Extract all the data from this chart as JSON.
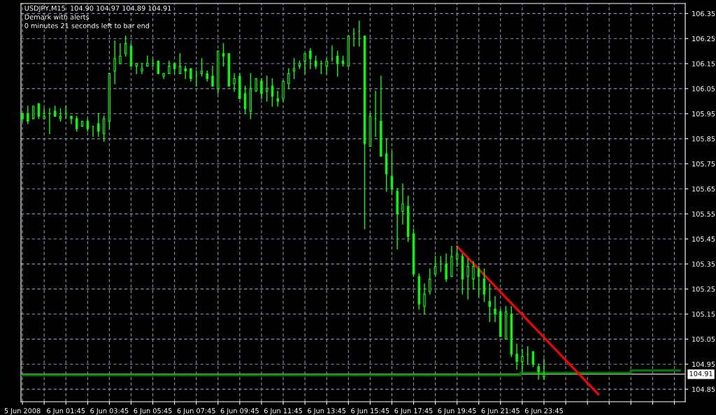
{
  "chart_data": {
    "type": "candlestick",
    "title": "USDJPY,M15  104.90 104.97 104.89 104.91",
    "subtitle": "Demark with alerts",
    "annotations": [
      "0 minutes 21 seconds left to bar end"
    ],
    "x": [
      "2008-06-05T23:45",
      "2008-06-06T00:00",
      "2008-06-06T00:15",
      "2008-06-06T00:30",
      "2008-06-06T00:45",
      "2008-06-06T01:00",
      "2008-06-06T01:15",
      "2008-06-06T01:30",
      "2008-06-06T01:45",
      "2008-06-06T02:00",
      "2008-06-06T02:15",
      "2008-06-06T02:30",
      "2008-06-06T02:45",
      "2008-06-06T03:00",
      "2008-06-06T03:15",
      "2008-06-06T03:30",
      "2008-06-06T03:45",
      "2008-06-06T04:00",
      "2008-06-06T04:15",
      "2008-06-06T04:30",
      "2008-06-06T04:45",
      "2008-06-06T05:00",
      "2008-06-06T05:15",
      "2008-06-06T05:30",
      "2008-06-06T05:45",
      "2008-06-06T06:00",
      "2008-06-06T06:15",
      "2008-06-06T06:30",
      "2008-06-06T06:45",
      "2008-06-06T07:00",
      "2008-06-06T07:15",
      "2008-06-06T07:30",
      "2008-06-06T07:45",
      "2008-06-06T08:00",
      "2008-06-06T08:15",
      "2008-06-06T08:30",
      "2008-06-06T08:45",
      "2008-06-06T09:00",
      "2008-06-06T09:15",
      "2008-06-06T09:30",
      "2008-06-06T09:45",
      "2008-06-06T10:00",
      "2008-06-06T10:15",
      "2008-06-06T10:30",
      "2008-06-06T10:45",
      "2008-06-06T11:00",
      "2008-06-06T11:15",
      "2008-06-06T11:30",
      "2008-06-06T11:45",
      "2008-06-06T12:00",
      "2008-06-06T12:15",
      "2008-06-06T12:30",
      "2008-06-06T12:45",
      "2008-06-06T13:00",
      "2008-06-06T13:15",
      "2008-06-06T13:30",
      "2008-06-06T13:45",
      "2008-06-06T14:00",
      "2008-06-06T14:15",
      "2008-06-06T14:30",
      "2008-06-06T14:45",
      "2008-06-06T15:00",
      "2008-06-06T15:15",
      "2008-06-06T15:30",
      "2008-06-06T15:45",
      "2008-06-06T16:00",
      "2008-06-06T16:15",
      "2008-06-06T16:30",
      "2008-06-06T16:45",
      "2008-06-06T17:00",
      "2008-06-06T17:15",
      "2008-06-06T17:30",
      "2008-06-06T17:45",
      "2008-06-06T18:00",
      "2008-06-06T18:15",
      "2008-06-06T18:30",
      "2008-06-06T18:45",
      "2008-06-06T19:00",
      "2008-06-06T19:15",
      "2008-06-06T19:30",
      "2008-06-06T19:45",
      "2008-06-06T20:00",
      "2008-06-06T20:15",
      "2008-06-06T20:30",
      "2008-06-06T20:45",
      "2008-06-06T21:00",
      "2008-06-06T21:15",
      "2008-06-06T21:30",
      "2008-06-06T21:45",
      "2008-06-06T22:00",
      "2008-06-06T22:15",
      "2008-06-06T22:30",
      "2008-06-06T22:45",
      "2008-06-06T23:00",
      "2008-06-06T23:15",
      "2008-06-06T23:30",
      "2008-06-06T23:45"
    ],
    "ohlc": [
      [
        105.95,
        105.95,
        105.92,
        105.93
      ],
      [
        105.95,
        105.98,
        105.91,
        105.92
      ],
      [
        105.93,
        105.98,
        105.93,
        105.98
      ],
      [
        105.99,
        105.99,
        105.93,
        105.94
      ],
      [
        105.93,
        105.97,
        105.93,
        105.94
      ],
      [
        105.95,
        105.97,
        105.87,
        105.95
      ],
      [
        105.96,
        105.98,
        105.94,
        105.94
      ],
      [
        105.93,
        105.97,
        105.92,
        105.94
      ],
      [
        105.95,
        105.98,
        105.93,
        105.95
      ],
      [
        105.94,
        105.94,
        105.91,
        105.93
      ],
      [
        105.93,
        105.94,
        105.88,
        105.89
      ],
      [
        105.9,
        105.92,
        105.9,
        105.92
      ],
      [
        105.92,
        105.93,
        105.88,
        105.89
      ],
      [
        105.9,
        105.9,
        105.86,
        105.9
      ],
      [
        105.91,
        105.95,
        105.86,
        105.88
      ],
      [
        105.87,
        105.94,
        105.84,
        105.93
      ],
      [
        105.92,
        106.11,
        105.89,
        106.11
      ],
      [
        106.12,
        106.24,
        106.07,
        106.17
      ],
      [
        106.15,
        106.23,
        106.15,
        106.18
      ],
      [
        106.19,
        106.26,
        106.18,
        106.23
      ],
      [
        106.22,
        106.23,
        106.14,
        106.14
      ],
      [
        106.14,
        106.15,
        106.11,
        106.15
      ],
      [
        106.12,
        106.15,
        106.11,
        106.13
      ],
      [
        106.14,
        106.18,
        106.14,
        106.15
      ],
      [
        106.14,
        106.17,
        106.14,
        106.14
      ],
      [
        106.16,
        106.16,
        106.11,
        106.11
      ],
      [
        106.1,
        106.11,
        106.09,
        106.11
      ],
      [
        106.11,
        106.16,
        106.11,
        106.14
      ],
      [
        106.15,
        106.15,
        106.11,
        106.13
      ],
      [
        106.11,
        106.19,
        106.11,
        106.14
      ],
      [
        106.13,
        106.14,
        106.09,
        106.12
      ],
      [
        106.13,
        106.13,
        106.08,
        106.09
      ],
      [
        106.1,
        106.12,
        106.06,
        106.1
      ],
      [
        106.11,
        106.17,
        106.1,
        106.12
      ],
      [
        106.11,
        106.12,
        106.08,
        106.09
      ],
      [
        106.1,
        106.14,
        106.06,
        106.06
      ],
      [
        106.05,
        106.2,
        106.03,
        106.2
      ],
      [
        106.19,
        106.23,
        106.14,
        106.18
      ],
      [
        106.19,
        106.19,
        106.06,
        106.06
      ],
      [
        106.07,
        106.11,
        106.04,
        106.09
      ],
      [
        106.1,
        106.11,
        106.01,
        106.01
      ],
      [
        106.03,
        106.06,
        105.95,
        105.97
      ],
      [
        105.96,
        106.11,
        105.93,
        106.05
      ],
      [
        106.04,
        106.09,
        106.04,
        106.09
      ],
      [
        106.08,
        106.09,
        106.01,
        106.03
      ],
      [
        106.04,
        106.1,
        106.0,
        106.05
      ],
      [
        106.06,
        106.09,
        105.98,
        106.02
      ],
      [
        106.01,
        106.04,
        105.98,
        106.0
      ],
      [
        106.01,
        106.08,
        106.0,
        106.08
      ],
      [
        106.07,
        106.13,
        106.05,
        106.11
      ],
      [
        106.12,
        106.17,
        106.09,
        106.13
      ],
      [
        106.14,
        106.16,
        106.13,
        106.15
      ],
      [
        106.16,
        106.19,
        106.11,
        106.19
      ],
      [
        106.2,
        106.21,
        106.13,
        106.17
      ],
      [
        106.16,
        106.18,
        106.13,
        106.14
      ],
      [
        106.15,
        106.16,
        106.11,
        106.15
      ],
      [
        106.14,
        106.17,
        106.11,
        106.16
      ],
      [
        106.17,
        106.22,
        106.16,
        106.17
      ],
      [
        106.18,
        106.2,
        106.1,
        106.15
      ],
      [
        106.16,
        106.18,
        106.14,
        106.15
      ],
      [
        106.14,
        106.26,
        106.14,
        106.26
      ],
      [
        106.27,
        106.29,
        106.22,
        106.27
      ],
      [
        106.28,
        106.32,
        106.22,
        106.28
      ],
      [
        106.26,
        106.26,
        105.49,
        105.83
      ],
      [
        105.82,
        105.95,
        105.82,
        105.94
      ],
      [
        105.93,
        106.04,
        105.86,
        105.93
      ],
      [
        105.92,
        106.1,
        105.78,
        105.78
      ],
      [
        105.79,
        105.85,
        105.64,
        105.71
      ],
      [
        105.7,
        105.8,
        105.63,
        105.65
      ],
      [
        105.64,
        105.65,
        105.41,
        105.55
      ],
      [
        105.56,
        105.67,
        105.51,
        105.59
      ],
      [
        105.58,
        105.62,
        105.44,
        105.46
      ],
      [
        105.47,
        105.49,
        105.3,
        105.31
      ],
      [
        105.3,
        105.31,
        105.17,
        105.19
      ],
      [
        105.18,
        105.27,
        105.15,
        105.23
      ],
      [
        105.24,
        105.33,
        105.23,
        105.29
      ],
      [
        105.31,
        105.38,
        105.3,
        105.34
      ],
      [
        105.36,
        105.38,
        105.32,
        105.36
      ],
      [
        105.35,
        105.39,
        105.28,
        105.29
      ],
      [
        105.3,
        105.42,
        105.3,
        105.38
      ],
      [
        105.37,
        105.42,
        105.34,
        105.39
      ],
      [
        105.38,
        105.39,
        105.23,
        105.29
      ],
      [
        105.3,
        105.37,
        105.21,
        105.34
      ],
      [
        105.29,
        105.36,
        105.25,
        105.34
      ],
      [
        105.33,
        105.34,
        105.22,
        105.3
      ],
      [
        105.29,
        105.33,
        105.2,
        105.23
      ],
      [
        105.2,
        105.27,
        105.12,
        105.18
      ],
      [
        105.17,
        105.22,
        105.12,
        105.15
      ],
      [
        105.16,
        105.17,
        105.06,
        105.06
      ],
      [
        105.05,
        105.18,
        105.05,
        105.16
      ],
      [
        105.15,
        105.18,
        104.98,
        104.99
      ],
      [
        104.99,
        105.03,
        104.93,
        104.96
      ],
      [
        104.96,
        105.01,
        104.92,
        104.98
      ],
      [
        104.99,
        105.02,
        104.95,
        104.99
      ],
      [
        105.0,
        105.0,
        104.94,
        104.95
      ],
      [
        104.94,
        104.95,
        104.89,
        104.92
      ],
      [
        104.9,
        104.97,
        104.89,
        104.91
      ]
    ],
    "color": "#00ff00",
    "series": [
      {
        "type": "line",
        "color": "#008000",
        "x": [
          "2008-06-05T23:41",
          "2008-06-06T22:40",
          "2008-06-06T22:40",
          "2008-06-07T03:45",
          "2008-06-07T03:45",
          "2008-06-07T06:00"
        ],
        "values": [
          104.906,
          104.906,
          104.915,
          104.915,
          104.925,
          104.925
        ]
      },
      {
        "type": "line",
        "color": "#ff0000",
        "x": [
          "2008-06-06T19:45",
          "2008-06-07T02:15"
        ],
        "values": [
          105.42,
          104.83
        ]
      }
    ],
    "ref_lines": [
      {
        "axis": "y",
        "value": 104.91,
        "label": "104.91",
        "color": "#c0c0c0"
      }
    ],
    "xlim": [
      "2008-06-05T23:41",
      "2008-06-07T06:15"
    ],
    "xticks": [
      {
        "value": "2008-06-05T23:45",
        "label": "5 Jun 2008"
      },
      {
        "value": "2008-06-06T00:45",
        "label": null
      },
      {
        "value": "2008-06-06T01:45",
        "label": "6 Jun 01:45"
      },
      {
        "value": "2008-06-06T02:45",
        "label": null
      },
      {
        "value": "2008-06-06T03:45",
        "label": "6 Jun 03:45"
      },
      {
        "value": "2008-06-06T04:45",
        "label": null
      },
      {
        "value": "2008-06-06T05:45",
        "label": "6 Jun 05:45"
      },
      {
        "value": "2008-06-06T06:45",
        "label": null
      },
      {
        "value": "2008-06-06T07:45",
        "label": "6 Jun 07:45"
      },
      {
        "value": "2008-06-06T08:45",
        "label": null
      },
      {
        "value": "2008-06-06T09:45",
        "label": "6 Jun 09:45"
      },
      {
        "value": "2008-06-06T10:45",
        "label": null
      },
      {
        "value": "2008-06-06T11:45",
        "label": "6 Jun 11:45"
      },
      {
        "value": "2008-06-06T12:45",
        "label": null
      },
      {
        "value": "2008-06-06T13:45",
        "label": "6 Jun 13:45"
      },
      {
        "value": "2008-06-06T14:45",
        "label": null
      },
      {
        "value": "2008-06-06T15:45",
        "label": "6 Jun 15:45"
      },
      {
        "value": "2008-06-06T16:45",
        "label": null
      },
      {
        "value": "2008-06-06T17:45",
        "label": "6 Jun 17:45"
      },
      {
        "value": "2008-06-06T18:45",
        "label": null
      },
      {
        "value": "2008-06-06T19:45",
        "label": "6 Jun 19:45"
      },
      {
        "value": "2008-06-06T20:45",
        "label": null
      },
      {
        "value": "2008-06-06T21:45",
        "label": "6 Jun 21:45"
      },
      {
        "value": "2008-06-06T22:45",
        "label": null
      },
      {
        "value": "2008-06-06T23:45",
        "label": "6 Jun 23:45"
      },
      {
        "value": "2008-06-07T00:45",
        "label": null
      },
      {
        "value": "2008-06-07T01:45",
        "label": null
      },
      {
        "value": "2008-06-07T02:45",
        "label": null
      },
      {
        "value": "2008-06-07T03:45",
        "label": null
      },
      {
        "value": "2008-06-07T04:45",
        "label": null
      },
      {
        "value": "2008-06-07T05:45",
        "label": null
      }
    ],
    "ylim": [
      104.8,
      106.39
    ],
    "yticks": [
      104.85,
      104.95,
      105.05,
      105.15,
      105.25,
      105.35,
      105.45,
      105.55,
      105.65,
      105.75,
      105.85,
      105.95,
      106.05,
      106.15,
      106.25,
      106.35
    ],
    "grid": true,
    "legend": false
  }
}
